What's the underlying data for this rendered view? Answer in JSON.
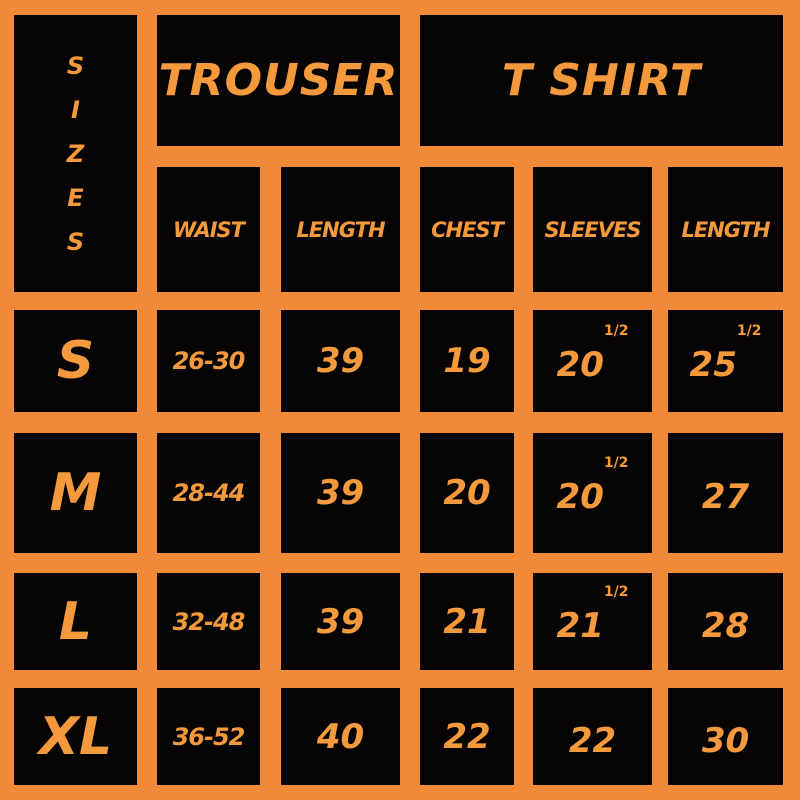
{
  "colors": {
    "background": "#f08a38",
    "cell": "#050403",
    "text": "#f59a3c"
  },
  "sizes_label": [
    "S",
    "I",
    "Z",
    "E",
    "S"
  ],
  "groups": {
    "trouser": "TROUSER",
    "tshirt": "T SHIRT"
  },
  "columns": [
    "WAIST",
    "LENGTH",
    "CHEST",
    "SLEEVES",
    "LENGTH"
  ],
  "rows": [
    {
      "size": "S",
      "waist": "26-30",
      "trouser_length": "39",
      "chest": "19",
      "sleeves": {
        "value": "20",
        "fraction": "1/2"
      },
      "tshirt_length": {
        "value": "25",
        "fraction": "1/2"
      }
    },
    {
      "size": "M",
      "waist": "28-44",
      "trouser_length": "39",
      "chest": "20",
      "sleeves": {
        "value": "20",
        "fraction": "1/2"
      },
      "tshirt_length": {
        "value": "27",
        "fraction": ""
      }
    },
    {
      "size": "L",
      "waist": "32-48",
      "trouser_length": "39",
      "chest": "21",
      "sleeves": {
        "value": "21",
        "fraction": "1/2"
      },
      "tshirt_length": {
        "value": "28",
        "fraction": ""
      }
    },
    {
      "size": "XL",
      "waist": "36-52",
      "trouser_length": "40",
      "chest": "22",
      "sleeves": {
        "value": "22",
        "fraction": ""
      },
      "tshirt_length": {
        "value": "30",
        "fraction": ""
      }
    }
  ]
}
